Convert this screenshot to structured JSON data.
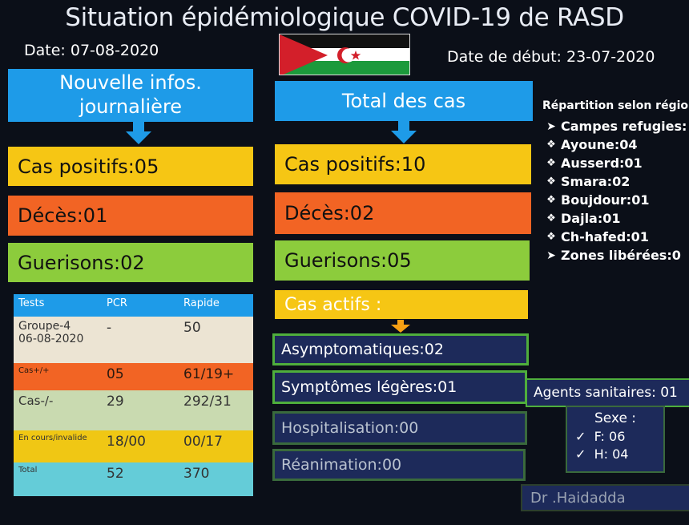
{
  "header": {
    "title": "Situation épidémiologique COVID-19 de  RASD",
    "date": "Date: 07-08-2020",
    "start_date": "Date de début: 23-07-2020"
  },
  "colors": {
    "blue": "#1e9be8",
    "yellow": "#f6c614",
    "orange": "#f26424",
    "green": "#8ccc3c",
    "navy": "#1d2a5a"
  },
  "daily": {
    "heading_line1": "Nouvelle infos.",
    "heading_line2": "journalière",
    "positive": "Cas positifs:05",
    "deaths": "Décès:01",
    "recoveries": "Guerisons:02"
  },
  "total": {
    "heading": "Total des cas",
    "positive": "Cas positifs:10",
    "deaths": "Décès:02",
    "recoveries": "Guerisons:05",
    "active": "Cas  actifs :",
    "asymptomatic": "Asymptomatiques:02",
    "mild": "Symptômes légères:01",
    "hospitalised": "Hospitalisation:00",
    "icu": "Réanimation:00"
  },
  "regions": {
    "title": "Répartition selon région",
    "items": [
      {
        "marker": "➤",
        "label": "Campes refugies:",
        "sub": false
      },
      {
        "marker": "❖",
        "label": "Ayoune:04",
        "sub": true
      },
      {
        "marker": "❖",
        "label": "Ausserd:01",
        "sub": true
      },
      {
        "marker": "❖",
        "label": "Smara:02",
        "sub": true
      },
      {
        "marker": "❖",
        "label": "Boujdour:01",
        "sub": true
      },
      {
        "marker": "❖",
        "label": "Dajla:01",
        "sub": true
      },
      {
        "marker": "❖",
        "label": "Ch-hafed:01",
        "sub": true
      },
      {
        "marker": "➤",
        "label": "Zones libérées:0",
        "sub": false
      }
    ]
  },
  "tests": {
    "headers": [
      "Tests",
      "PCR",
      "Rapide"
    ],
    "rows": [
      {
        "label_line1": "Groupe-4",
        "label_line2": "06-08-2020",
        "pcr": "-",
        "rapid": "50"
      },
      {
        "label_line1": "Cas+/+",
        "label_line2": "",
        "pcr": "05",
        "rapid": "61/19+"
      },
      {
        "label_line1": "Cas-/-",
        "label_line2": "",
        "pcr": "29",
        "rapid": "292/31"
      },
      {
        "label_line1": "En cours/invalide",
        "label_line2": "",
        "pcr": "18/00",
        "rapid": "00/17"
      },
      {
        "label_line1": "Total",
        "label_line2": "",
        "pcr": "52",
        "rapid": "370"
      }
    ]
  },
  "staff": {
    "title": "Agents sanitaires: 01",
    "sex_title": "Sexe :",
    "female": "F: 06",
    "male": "H: 04",
    "check_mark": "✓"
  },
  "author": "Dr .Haidadda"
}
